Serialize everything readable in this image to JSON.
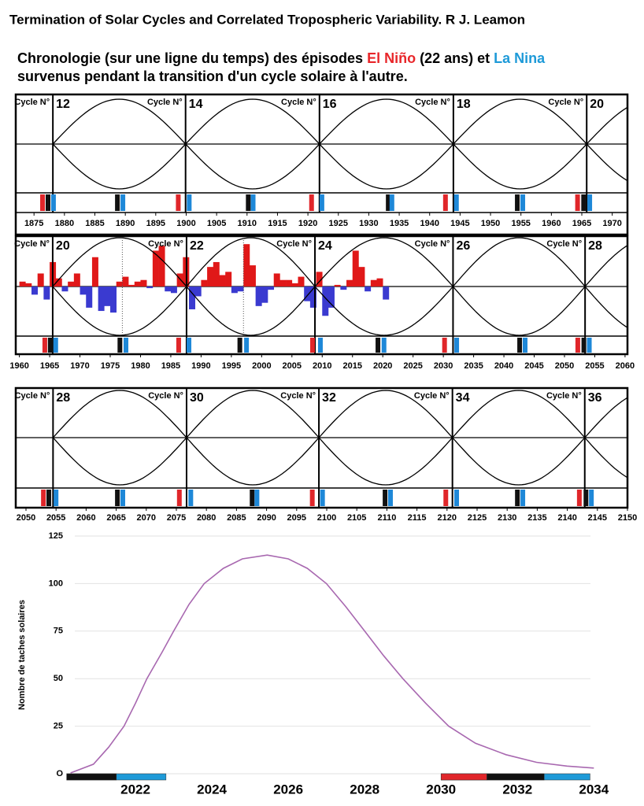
{
  "header": {
    "title": "Termination of Solar Cycles and Correlated Tropospheric Variability. R J. Leamon"
  },
  "subtitle": {
    "text1": "Chronologie (sur une ligne du temps) des épisodes ",
    "el_nino": "El Niño",
    "text2": " (22 ans) et ",
    "la_nina": "La Nina",
    "line2": "survenus pendant la transition d'un cycle solaire à l'autre.",
    "el_nino_color": "#e8262a",
    "la_nina_color": "#1e9ad8"
  },
  "panels": [
    {
      "xlim": [
        1872,
        1972.5
      ],
      "xticks": [
        1875,
        1880,
        1885,
        1890,
        1895,
        1900,
        1905,
        1910,
        1915,
        1920,
        1925,
        1930,
        1935,
        1940,
        1945,
        1950,
        1955,
        1960,
        1965,
        1970
      ],
      "cycles": [
        {
          "label": "Cycle N°",
          "number": "12",
          "year": 1878.1
        },
        {
          "label": "Cycle N°",
          "number": "14",
          "year": 1899.9
        },
        {
          "label": "Cycle N°",
          "number": "16",
          "year": 1921.9
        },
        {
          "label": "Cycle N°",
          "number": "18",
          "year": 1943.9
        },
        {
          "label": "Cycle N°",
          "number": "20",
          "year": 1965.8
        }
      ],
      "events": [
        {
          "year": 1876.4,
          "color": "#e0262a"
        },
        {
          "year": 1877.3,
          "color": "#111111"
        },
        {
          "year": 1878.2,
          "color": "#1e88d8"
        },
        {
          "year": 1888.7,
          "color": "#111111"
        },
        {
          "year": 1889.6,
          "color": "#1e88d8"
        },
        {
          "year": 1898.7,
          "color": "#e0262a"
        },
        {
          "year": 1900.5,
          "color": "#1e88d8"
        },
        {
          "year": 1910.2,
          "color": "#111111"
        },
        {
          "year": 1911.0,
          "color": "#1e88d8"
        },
        {
          "year": 1920.6,
          "color": "#e0262a"
        },
        {
          "year": 1922.3,
          "color": "#1e88d8"
        },
        {
          "year": 1933.2,
          "color": "#111111"
        },
        {
          "year": 1933.8,
          "color": "#1e88d8"
        },
        {
          "year": 1942.6,
          "color": "#e0262a"
        },
        {
          "year": 1944.4,
          "color": "#1e88d8"
        },
        {
          "year": 1954.4,
          "color": "#111111"
        },
        {
          "year": 1955.3,
          "color": "#1e88d8"
        },
        {
          "year": 1964.3,
          "color": "#e0262a"
        },
        {
          "year": 1965.3,
          "color": "#111111"
        },
        {
          "year": 1966.3,
          "color": "#1e88d8"
        }
      ]
    },
    {
      "xlim": [
        1959.4,
        2060.4
      ],
      "xticks": [
        1960,
        1965,
        1970,
        1975,
        1980,
        1985,
        1990,
        1995,
        2000,
        2005,
        2010,
        2015,
        2020,
        2025,
        2030,
        2035,
        2040,
        2045,
        2050,
        2055,
        2060
      ],
      "cycles": [
        {
          "label": "Cycle N°",
          "number": "20",
          "year": 1965.5
        },
        {
          "label": "Cycle N°",
          "number": "22",
          "year": 1987.6
        },
        {
          "label": "Cycle N°",
          "number": "24",
          "year": 2008.8
        },
        {
          "label": "Cycle N°",
          "number": "26",
          "year": 2031.6
        },
        {
          "label": "Cycle N°",
          "number": "28",
          "year": 2053.4
        }
      ],
      "events": [
        {
          "year": 1964.2,
          "color": "#e0262a"
        },
        {
          "year": 1965.1,
          "color": "#111111"
        },
        {
          "year": 1966.0,
          "color": "#1e88d8"
        },
        {
          "year": 1976.6,
          "color": "#111111"
        },
        {
          "year": 1977.6,
          "color": "#1e88d8"
        },
        {
          "year": 1986.3,
          "color": "#e0262a"
        },
        {
          "year": 1988.0,
          "color": "#1e88d8"
        },
        {
          "year": 1996.4,
          "color": "#111111"
        },
        {
          "year": 1997.5,
          "color": "#1e88d8"
        },
        {
          "year": 2008.4,
          "color": "#e0262a"
        },
        {
          "year": 2009.7,
          "color": "#1e88d8"
        },
        {
          "year": 2019.2,
          "color": "#111111"
        },
        {
          "year": 2020.2,
          "color": "#1e88d8"
        },
        {
          "year": 2030.2,
          "color": "#e0262a"
        },
        {
          "year": 2032.2,
          "color": "#1e88d8"
        },
        {
          "year": 2042.6,
          "color": "#111111"
        },
        {
          "year": 2043.5,
          "color": "#1e88d8"
        },
        {
          "year": 2052.2,
          "color": "#e0262a"
        },
        {
          "year": 2053.2,
          "color": "#111111"
        },
        {
          "year": 2054.1,
          "color": "#1e88d8"
        }
      ],
      "enso": {
        "pos_color": "#e01818",
        "neg_color": "#3a3ad0",
        "x": [
          1960,
          1961,
          1962,
          1963,
          1964,
          1965,
          1966,
          1967,
          1968,
          1969,
          1970,
          1971,
          1972,
          1973,
          1974,
          1975,
          1976,
          1977,
          1978,
          1979,
          1980,
          1981,
          1982,
          1983,
          1984,
          1985,
          1986,
          1987,
          1988,
          1989,
          1990,
          1991,
          1992,
          1993,
          1994,
          1995,
          1996,
          1997,
          1998,
          1999,
          2000,
          2001,
          2002,
          2003,
          2004,
          2005,
          2006,
          2007,
          2008,
          2009,
          2010,
          2011,
          2012,
          2013,
          2014,
          2015,
          2016,
          2017,
          2018,
          2019,
          2020
        ],
        "values": [
          0.3,
          0.2,
          -0.5,
          0.8,
          -0.8,
          1.5,
          0.5,
          -0.3,
          0.3,
          0.8,
          -0.5,
          -1.3,
          1.8,
          -1.5,
          -1.2,
          -1.6,
          0.3,
          0.6,
          0.1,
          0.3,
          0.4,
          -0.1,
          2.2,
          2.5,
          -0.3,
          -0.4,
          0.8,
          1.8,
          -1.4,
          -0.6,
          0.4,
          1.2,
          1.5,
          0.7,
          0.9,
          -0.4,
          -0.3,
          2.6,
          1.3,
          -1.2,
          -1.0,
          -0.2,
          0.8,
          0.4,
          0.4,
          0.2,
          0.6,
          -0.9,
          -1.3,
          0.9,
          -1.8,
          -1.3,
          0.1,
          -0.2,
          0.4,
          2.2,
          1.2,
          -0.3,
          0.4,
          0.5,
          -0.8
        ]
      }
    },
    {
      "xlim": [
        2048.3,
        2150
      ],
      "xticks": [
        2050,
        2055,
        2060,
        2065,
        2070,
        2075,
        2080,
        2085,
        2090,
        2095,
        2100,
        2105,
        2110,
        2115,
        2120,
        2125,
        2130,
        2135,
        2140,
        2145,
        2150
      ],
      "cycles": [
        {
          "label": "Cycle N°",
          "number": "28",
          "year": 2054.5
        },
        {
          "label": "Cycle N°",
          "number": "30",
          "year": 2076.7
        },
        {
          "label": "Cycle N°",
          "number": "32",
          "year": 2098.7
        },
        {
          "label": "Cycle N°",
          "number": "34",
          "year": 2120.9
        },
        {
          "label": "Cycle N°",
          "number": "36",
          "year": 2142.9
        }
      ],
      "events": [
        {
          "year": 2052.9,
          "color": "#e0262a"
        },
        {
          "year": 2053.8,
          "color": "#111111"
        },
        {
          "year": 2055.0,
          "color": "#1e88d8"
        },
        {
          "year": 2065.2,
          "color": "#111111"
        },
        {
          "year": 2066.1,
          "color": "#1e88d8"
        },
        {
          "year": 2075.5,
          "color": "#e0262a"
        },
        {
          "year": 2077.4,
          "color": "#1e88d8"
        },
        {
          "year": 2087.6,
          "color": "#111111"
        },
        {
          "year": 2088.4,
          "color": "#1e88d8"
        },
        {
          "year": 2097.6,
          "color": "#e0262a"
        },
        {
          "year": 2099.3,
          "color": "#1e88d8"
        },
        {
          "year": 2109.7,
          "color": "#111111"
        },
        {
          "year": 2110.6,
          "color": "#1e88d8"
        },
        {
          "year": 2119.8,
          "color": "#e0262a"
        },
        {
          "year": 2121.6,
          "color": "#1e88d8"
        },
        {
          "year": 2131.7,
          "color": "#111111"
        },
        {
          "year": 2132.6,
          "color": "#1e88d8"
        },
        {
          "year": 2142.0,
          "color": "#e0262a"
        },
        {
          "year": 2143.1,
          "color": "#111111"
        },
        {
          "year": 2144.0,
          "color": "#1e88d8"
        }
      ]
    }
  ],
  "chart_data": {
    "type": "line",
    "y_label": "Nombre de taches solaires",
    "color": "#a868b0",
    "x": [
      2020.3,
      2020.9,
      2021.3,
      2021.7,
      2022.0,
      2022.3,
      2022.7,
      2023.0,
      2023.4,
      2023.8,
      2024.3,
      2024.8,
      2025.45,
      2026.0,
      2026.5,
      2027.0,
      2027.5,
      2028.0,
      2028.5,
      2029.0,
      2029.6,
      2030.2,
      2030.9,
      2031.7,
      2032.5,
      2033.3,
      2034.0
    ],
    "values": [
      0.4,
      5,
      14,
      25,
      37,
      50,
      64,
      75,
      89,
      100,
      108,
      113,
      115,
      113,
      108,
      100,
      88,
      75,
      62,
      50,
      37,
      25,
      16,
      10,
      6,
      4,
      3
    ],
    "xlim": [
      2020,
      2034.2
    ],
    "xticks": [
      2022,
      2024,
      2026,
      2028,
      2030,
      2032,
      2034
    ],
    "ylim": [
      0,
      125
    ],
    "yticks": [
      {
        "value": 0,
        "label": "O"
      },
      25,
      50,
      75,
      100,
      125
    ],
    "grid": true,
    "bands": [
      {
        "start": 2020.2,
        "end": 2022.8,
        "color": "#1e9ad8"
      },
      {
        "start": 2020.2,
        "end": 2021.5,
        "color": "#111111"
      },
      {
        "start": 2030.0,
        "end": 2033.9,
        "color": "#1e9ad8"
      },
      {
        "start": 2030.0,
        "end": 2031.2,
        "color": "#e0262a"
      },
      {
        "start": 2031.2,
        "end": 2032.7,
        "color": "#111111"
      }
    ]
  }
}
